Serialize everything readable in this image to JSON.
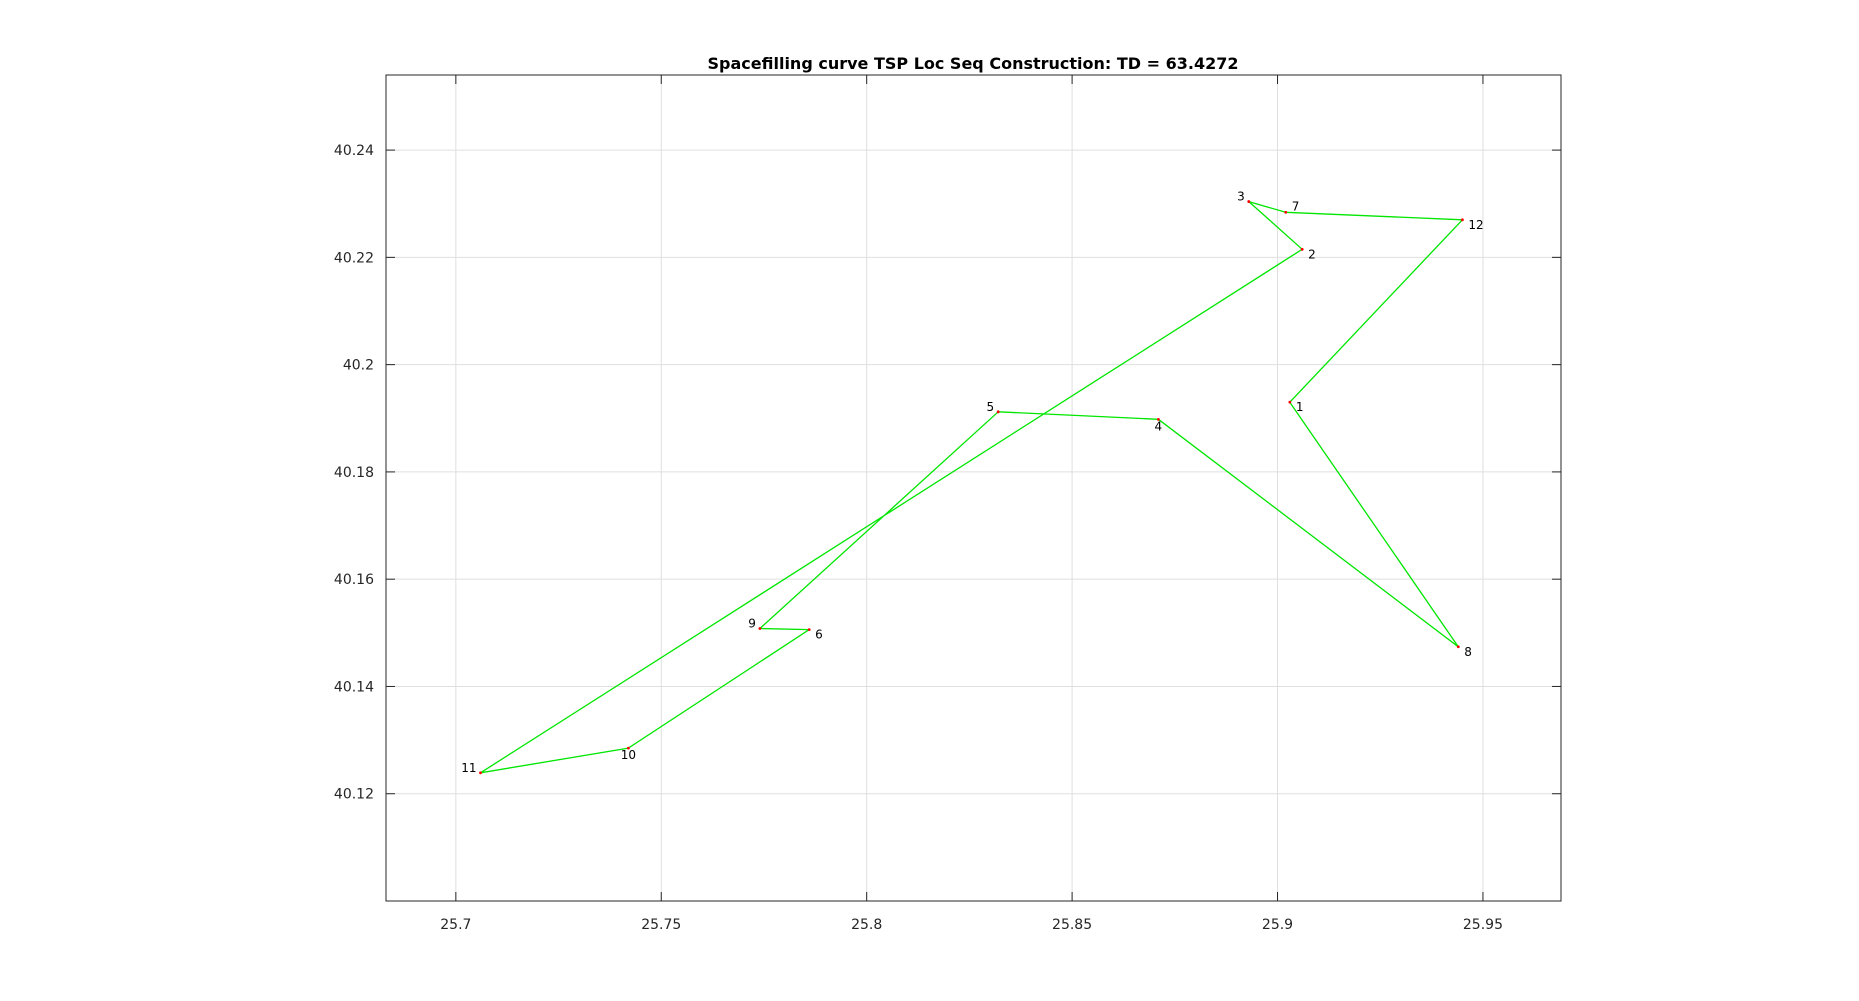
{
  "chart_data": {
    "type": "line",
    "title": "Spacefilling curve TSP Loc Seq Construction: TD = 63.4272",
    "xlabel": "",
    "ylabel": "",
    "xlim": [
      25.683,
      25.969
    ],
    "ylim": [
      40.1,
      40.254
    ],
    "xticks": [
      25.7,
      25.75,
      25.8,
      25.85,
      25.9,
      25.95
    ],
    "xtick_labels": [
      "25.7",
      "25.75",
      "25.8",
      "25.85",
      "25.9",
      "25.95"
    ],
    "yticks": [
      40.12,
      40.14,
      40.16,
      40.18,
      40.2,
      40.22,
      40.24
    ],
    "ytick_labels": [
      "40.12",
      "40.14",
      "40.16",
      "40.18",
      "40.2",
      "40.22",
      "40.24"
    ],
    "grid": true,
    "line_color": "#00e600",
    "point_color": "#ff0000",
    "points": [
      {
        "label": "1",
        "x": 25.903,
        "y": 40.193
      },
      {
        "label": "2",
        "x": 25.906,
        "y": 40.2215
      },
      {
        "label": "3",
        "x": 25.893,
        "y": 40.2304
      },
      {
        "label": "4",
        "x": 25.871,
        "y": 40.1898
      },
      {
        "label": "5",
        "x": 25.832,
        "y": 40.1912
      },
      {
        "label": "6",
        "x": 25.786,
        "y": 40.1506
      },
      {
        "label": "7",
        "x": 25.902,
        "y": 40.2284
      },
      {
        "label": "8",
        "x": 25.944,
        "y": 40.1474
      },
      {
        "label": "9",
        "x": 25.774,
        "y": 40.1508
      },
      {
        "label": "10",
        "x": 25.742,
        "y": 40.1285
      },
      {
        "label": "11",
        "x": 25.706,
        "y": 40.1239
      },
      {
        "label": "12",
        "x": 25.945,
        "y": 40.227
      }
    ],
    "tour": [
      "1",
      "12",
      "7",
      "3",
      "2",
      "11",
      "10",
      "6",
      "9",
      "5",
      "4",
      "8",
      "1"
    ]
  }
}
